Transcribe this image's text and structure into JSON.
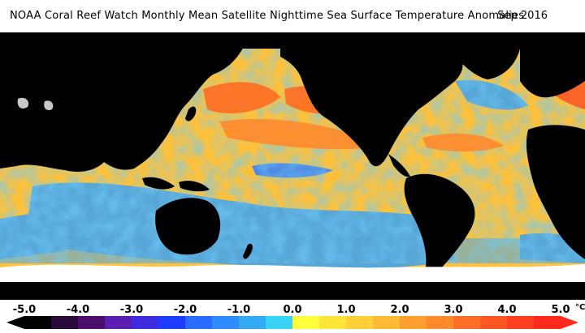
{
  "title": {
    "text": "NOAA Coral Reef Watch Monthly Mean Satellite Nighttime Sea Surface Temperature Anomalies",
    "date": "Sep 2016"
  },
  "legend": {
    "unit": "°C",
    "ticks": [
      "-5.0",
      "-4.0",
      "-3.0",
      "-2.0",
      "-1.0",
      "0.0",
      "1.0",
      "2.0",
      "3.0",
      "4.0",
      "5.0"
    ],
    "min": -5,
    "max": 5,
    "colors": [
      "#000000",
      "#2b0a3b",
      "#4b0f6b",
      "#5a1fb0",
      "#3f2be0",
      "#1c3cff",
      "#2a6cff",
      "#2f8dff",
      "#33aaf4",
      "#39d3f7",
      "#ffff3c",
      "#ffe53a",
      "#ffd038",
      "#ffb934",
      "#ff9f30",
      "#ff8a2c",
      "#ff6f28",
      "#ff5624",
      "#ff3e20",
      "#ff2a1c"
    ]
  },
  "map": {
    "ocean_color": "#ffc13a",
    "land_color": "#000000",
    "ice_color": "#ffffff",
    "cool_color": "#3b9df0",
    "hot_color": "#ff6d22"
  }
}
